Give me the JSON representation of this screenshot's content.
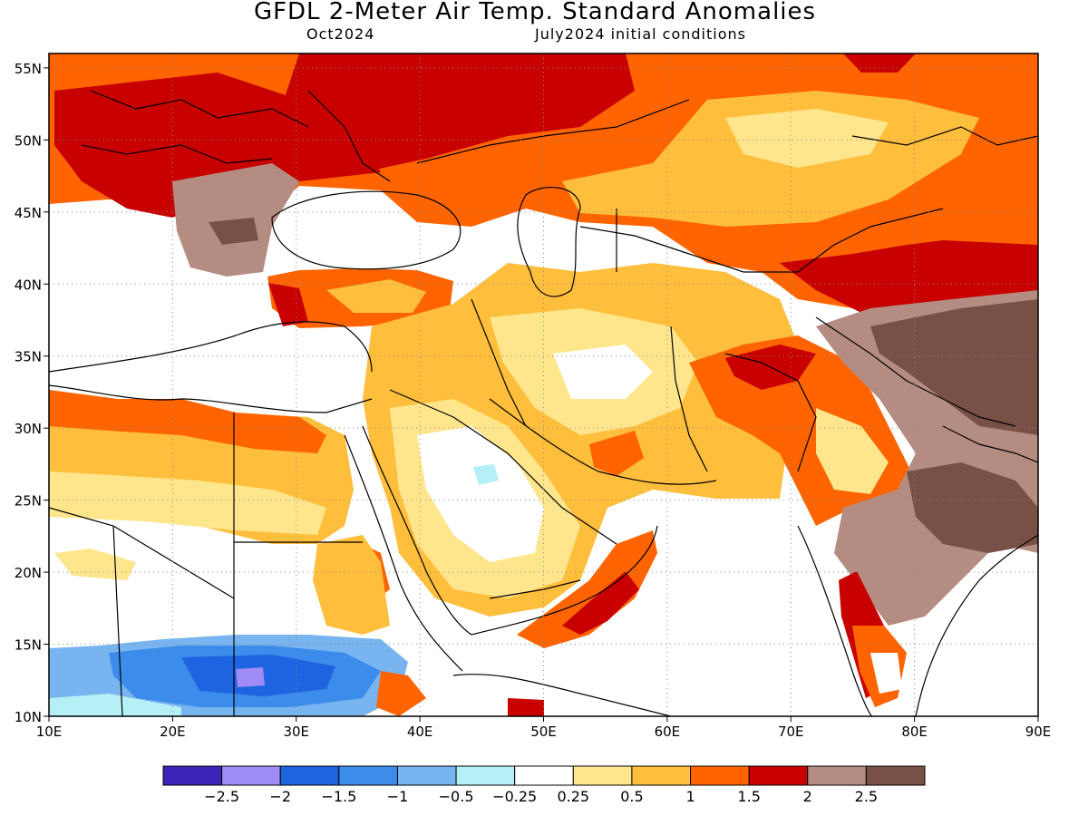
{
  "header": {
    "title": "GFDL 2-Meter Air Temp. Standard Anomalies",
    "forecast_month": "Oct2024",
    "initial_conditions": "July2024 initial conditions"
  },
  "map": {
    "lon_range": [
      10,
      90
    ],
    "lat_range": [
      10,
      56
    ],
    "lon_ticks": [
      "10E",
      "20E",
      "30E",
      "40E",
      "50E",
      "60E",
      "70E",
      "80E",
      "90E"
    ],
    "lat_ticks": [
      "55N",
      "50N",
      "45N",
      "40N",
      "35N",
      "30N",
      "25N",
      "20N",
      "15N",
      "10N"
    ],
    "gridlines": "dotted"
  },
  "colorbar": {
    "colors": [
      "#3a24b8",
      "#a08cf5",
      "#1e64e0",
      "#3c8ceb",
      "#78b4f0",
      "#b4f0f5",
      "#ffffff",
      "#ffe68c",
      "#ffbe3c",
      "#ff6400",
      "#c80000",
      "#b48c82",
      "#785046"
    ],
    "labels": [
      "-2.5",
      "-2",
      "-1.5",
      "-1",
      "-0.5",
      "-0.25",
      "0.25",
      "0.5",
      "1",
      "1.5",
      "2",
      "2.5"
    ]
  },
  "palette": {
    "white": "#ffffff",
    "lightyellow": "#ffe68c",
    "yellow": "#ffbe3c",
    "orange": "#ff6400",
    "red": "#c80000",
    "lightbrown": "#b48c82",
    "darkbrown": "#785046",
    "lightcyan": "#b4f0f5",
    "lightblue": "#78b4f0",
    "blue": "#3c8ceb",
    "darkblue": "#1e64e0",
    "purple": "#a08cf5"
  }
}
